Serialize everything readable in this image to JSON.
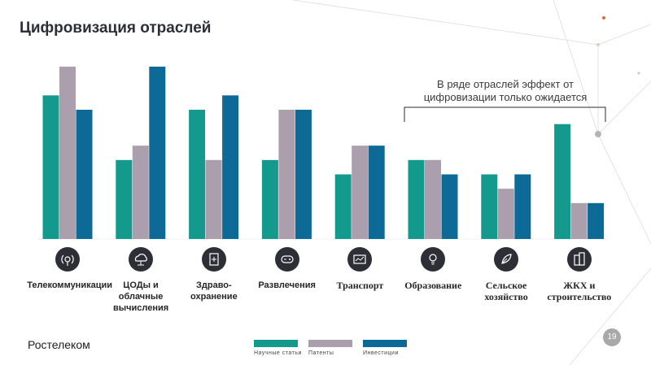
{
  "header": {
    "title": "Цифровизация отраслей"
  },
  "callout": {
    "text": "В ряде отраслей эффект от цифровизации только ожидается"
  },
  "footer": {
    "brand": "Ростелеком",
    "page_number": "19"
  },
  "colors": {
    "science": "#14998d",
    "patents": "#ab9fae",
    "investments": "#0d6996"
  },
  "chart_data": {
    "type": "bar",
    "categories": [
      "Телекоммуникации",
      "ЦОДы и облачные вычисления",
      "Здраво-охранение",
      "Развлечения",
      "Транспорт",
      "Образование",
      "Сельское хозяйство",
      "ЖКХ и строительство"
    ],
    "category_labels": [
      [
        "Телекоммуникации"
      ],
      [
        "ЦОДы и",
        "облачные",
        "вычисления"
      ],
      [
        "Здраво-",
        "охранение"
      ],
      [
        "Развлечения"
      ],
      [
        "Транспорт"
      ],
      [
        "Образование"
      ],
      [
        "Сельское",
        "хозяйство"
      ],
      [
        "ЖКХ и",
        "строительство"
      ]
    ],
    "category_icons": [
      "antenna-icon",
      "cloud-network-icon",
      "medical-clipboard-icon",
      "gamepad-icon",
      "transport-screen-icon",
      "education-bulb-icon",
      "agriculture-leaf-icon",
      "buildings-icon"
    ],
    "series": [
      {
        "name": "Научные статьи",
        "values": [
          5,
          2.75,
          4.5,
          2.75,
          2.25,
          2.75,
          2.25,
          4
        ]
      },
      {
        "name": "Патенты",
        "values": [
          6,
          3.25,
          2.75,
          4.5,
          3.25,
          2.75,
          1.75,
          1.25
        ]
      },
      {
        "name": "Инвестиции",
        "values": [
          4.5,
          6,
          5,
          4.5,
          3.25,
          2.25,
          2.25,
          1.25
        ]
      }
    ],
    "ylim": [
      0,
      6
    ],
    "xlabel": "",
    "ylabel": "",
    "grid": false,
    "legend_position": "bottom"
  }
}
